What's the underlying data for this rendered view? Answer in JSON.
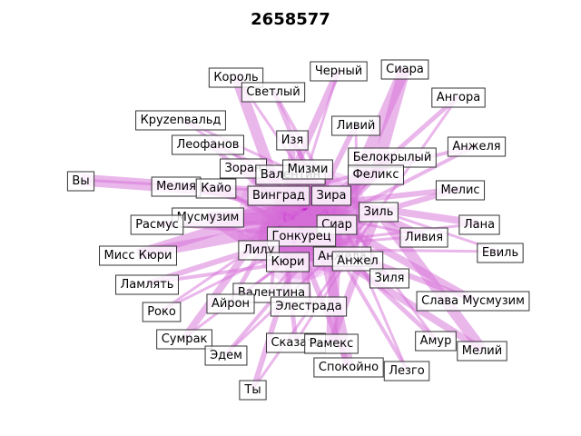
{
  "title": "2658577",
  "style": {
    "edge_color": "#d56fd8",
    "hub_color": "#c000c8",
    "box_fill": "#ffffff",
    "box_stroke": "#333333"
  },
  "nodes": [
    "Король",
    "Черный",
    "Сиара",
    "Светлый",
    "Ангора",
    "Круzenвальд",
    "Ливий",
    "Анжеля",
    "Леофанов",
    "Изя",
    "Белокрылый",
    "Зоран",
    "Валентин",
    "Мизми",
    "Феликс",
    "Вы",
    "Мелия",
    "Кайо",
    "Винград",
    "Зира",
    "Мелис",
    "Зиль",
    "Мусмузим",
    "Расмус",
    "Сиар",
    "Лана",
    "Гонкурец",
    "Ливия",
    "Евиль",
    "Мисс Кюри",
    "Лилу",
    "Анжела",
    "Анжел",
    "Кюри",
    "Ламлять",
    "Зиля",
    "Валентина",
    "Слава Мусмузим",
    "Айрон",
    "Элестрада",
    "Роко",
    "Сумрак",
    "Амур",
    "Сказать",
    "Рамекс",
    "Мелий",
    "Эдем",
    "Спокойно",
    "Лезго",
    "Ты"
  ],
  "edges": [
    [
      "Вы",
      "Винград"
    ],
    [
      "Сиара",
      "Феликс"
    ],
    [
      "Сиара",
      "Сиар"
    ],
    [
      "Черный",
      "Мизми"
    ],
    [
      "Король",
      "Винград"
    ],
    [
      "Светлый",
      "Зира"
    ],
    [
      "Ливий",
      "Гонкурец"
    ],
    [
      "Ангора",
      "Зиль"
    ],
    [
      "Круzenвальд",
      "Сиар"
    ],
    [
      "Леофанов",
      "Анжела"
    ],
    [
      "Изя",
      "Кюри"
    ],
    [
      "Зоран",
      "Зиль"
    ],
    [
      "Белокрылый",
      "Лилу"
    ],
    [
      "Анжеля",
      "Гонкурец"
    ],
    [
      "Мелис",
      "Мусмузим"
    ],
    [
      "Мелия",
      "Ливия"
    ],
    [
      "Кайо",
      "Зиля"
    ],
    [
      "Расмус",
      "Сиар"
    ],
    [
      "Лана",
      "Винград"
    ],
    [
      "Евиль",
      "Лилу"
    ],
    [
      "Мисс Кюри",
      "Зира"
    ],
    [
      "Ламлять",
      "Анжела"
    ],
    [
      "Слава Мусмузим",
      "Гонкурец"
    ],
    [
      "Роко",
      "Зира"
    ],
    [
      "Сумрак",
      "Сиар"
    ],
    [
      "Амур",
      "Винград"
    ],
    [
      "Мелий",
      "Гонкурец"
    ],
    [
      "Эдем",
      "Зиль"
    ],
    [
      "Спокойно",
      "Мизми"
    ],
    [
      "Лезго",
      "Валентин"
    ],
    [
      "Ты",
      "Гонкурец"
    ],
    [
      "Айрон",
      "Сиар"
    ],
    [
      "Элестрада",
      "Мизми"
    ],
    [
      "Сказать",
      "Винград"
    ],
    [
      "Рамекс",
      "Зиль"
    ],
    [
      "Валентина",
      "Феликс"
    ],
    [
      "Мусмузим",
      "Сиар"
    ],
    [
      "Лилу",
      "Зира"
    ],
    [
      "Кюри",
      "Зиль"
    ],
    [
      "Анжела",
      "Мизми"
    ],
    [
      "Анжел",
      "Винград"
    ],
    [
      "Гонкурец",
      "Зира"
    ],
    [
      "Валентин",
      "Ливия"
    ],
    [
      "Мизми",
      "Зиля"
    ],
    [
      "Феликс",
      "Лилу"
    ],
    [
      "Зира",
      "Анжел"
    ],
    [
      "Сиар",
      "Анжела"
    ],
    [
      "Зиль",
      "Гонкурец"
    ],
    [
      "Ливия",
      "Лилу"
    ],
    [
      "Зиля",
      "Винград"
    ],
    [
      "Сумрак",
      "Мизми"
    ],
    [
      "Роко",
      "Сиар"
    ],
    [
      "Мисс Кюри",
      "Зиль"
    ],
    [
      "Расмус",
      "Гонкурец"
    ],
    [
      "Кайо",
      "Анжела"
    ],
    [
      "Леофанов",
      "Зира"
    ],
    [
      "Король",
      "Сиар"
    ],
    [
      "Светлый",
      "Анжела"
    ],
    [
      "Черный",
      "Лилу"
    ],
    [
      "Ливий",
      "Анжел"
    ],
    [
      "Белокрылый",
      "Кюри"
    ],
    [
      "Анжеля",
      "Винград"
    ],
    [
      "Мелис",
      "Сиар"
    ],
    [
      "Лана",
      "Лилу"
    ],
    [
      "Евиль",
      "Зира"
    ],
    [
      "Ангора",
      "Гонкурец"
    ],
    [
      "Слава Мусмузим",
      "Сиар"
    ],
    [
      "Амур",
      "Мизми"
    ],
    [
      "Мелий",
      "Зиль"
    ],
    [
      "Эдем",
      "Сиар"
    ],
    [
      "Спокойно",
      "Винград"
    ],
    [
      "Лезго",
      "Зира"
    ],
    [
      "Ты",
      "Зиль"
    ],
    [
      "Айрон",
      "Мизми"
    ],
    [
      "Элестрада",
      "Гонкурец"
    ],
    [
      "Сказать",
      "Зиль"
    ],
    [
      "Рамекс",
      "Сиар"
    ],
    [
      "Валентина",
      "Винград"
    ],
    [
      "Ламлять",
      "Зиль"
    ],
    [
      "Вы",
      "Зира"
    ],
    [
      "Круzenвальд",
      "Зиль"
    ],
    [
      "Изя",
      "Сиар"
    ],
    [
      "Зоран",
      "Анжела"
    ],
    [
      "Мелия",
      "Сиар"
    ],
    [
      "Мусмузим",
      "Лилу"
    ]
  ]
}
